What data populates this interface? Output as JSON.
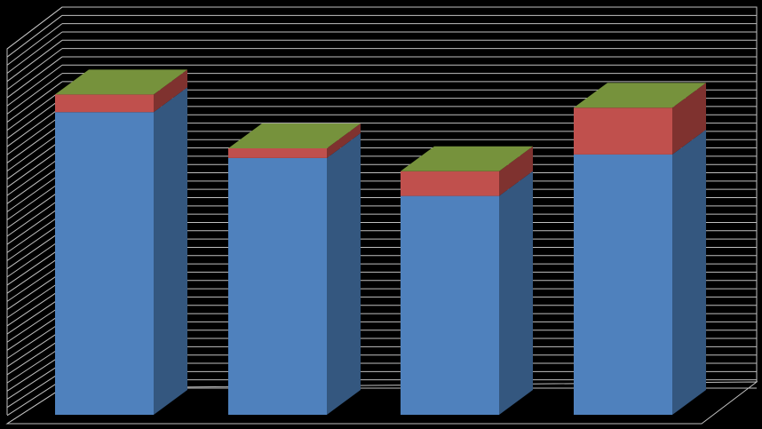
{
  "chart_data": {
    "type": "bar",
    "stacked": true,
    "three_d": true,
    "title": "",
    "xlabel": "",
    "ylabel": "",
    "categories": [
      "",
      "",
      "",
      ""
    ],
    "ylim": [
      0,
      46
    ],
    "gridlines": 46,
    "grid": true,
    "legend": "none",
    "series": [
      {
        "color": "#4F81BD",
        "values": [
          34.3,
          29.1,
          24.8,
          29.5
        ]
      },
      {
        "color": "#C0504D",
        "values": [
          2.0,
          1.1,
          2.8,
          5.3
        ]
      },
      {
        "color": "#9BBB59",
        "values": [
          0,
          0,
          0,
          0
        ]
      }
    ],
    "colors": {
      "background": "#000000",
      "grid": "#BFBFBF",
      "top_face": "#76923C"
    }
  }
}
